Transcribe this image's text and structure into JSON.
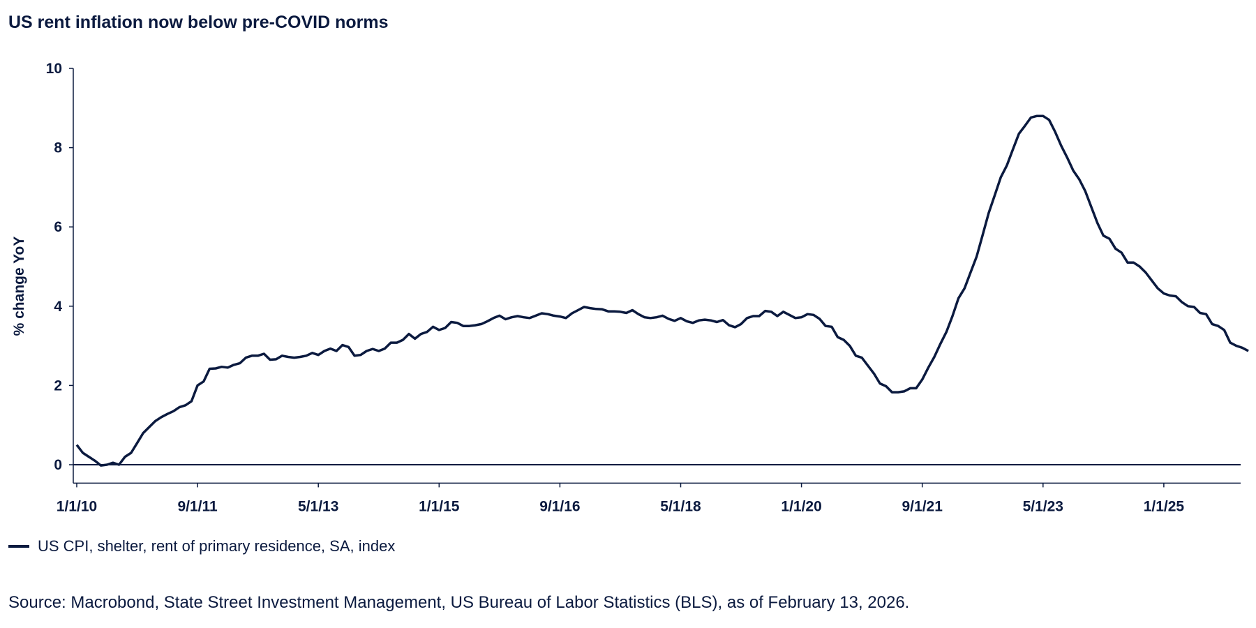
{
  "chart_data": {
    "type": "line",
    "title": "US rent inflation now below pre-COVID norms",
    "xlabel": "",
    "ylabel": "% change YoY",
    "ylim": [
      -0.5,
      10
    ],
    "yticks": [
      0,
      2,
      4,
      6,
      8,
      10
    ],
    "x_start": "2010-01",
    "x_frequency": "monthly",
    "xtick_labels": [
      "1/1/10",
      "9/1/11",
      "5/1/13",
      "1/1/15",
      "9/1/16",
      "5/1/18",
      "1/1/20",
      "9/1/21",
      "5/1/23",
      "1/1/25"
    ],
    "xtick_month_index": [
      0,
      20,
      40,
      60,
      80,
      100,
      120,
      140,
      160,
      180
    ],
    "grid": false,
    "legend_placement": "bottom-left",
    "series": [
      {
        "name": "US CPI, shelter, rent of primary residence, SA, index",
        "color": "#0b1a3f",
        "values": [
          0.5,
          0.3,
          0.2,
          0.1,
          -0.02,
          0.0,
          0.05,
          0.0,
          0.2,
          0.3,
          0.55,
          0.8,
          0.95,
          1.1,
          1.2,
          1.28,
          1.35,
          1.45,
          1.5,
          1.6,
          2.0,
          2.1,
          2.42,
          2.43,
          2.47,
          2.45,
          2.52,
          2.56,
          2.7,
          2.75,
          2.75,
          2.8,
          2.65,
          2.66,
          2.75,
          2.72,
          2.7,
          2.72,
          2.75,
          2.82,
          2.77,
          2.87,
          2.93,
          2.87,
          3.02,
          2.97,
          2.75,
          2.77,
          2.87,
          2.92,
          2.87,
          2.93,
          3.08,
          3.08,
          3.15,
          3.3,
          3.18,
          3.3,
          3.35,
          3.48,
          3.4,
          3.45,
          3.6,
          3.58,
          3.5,
          3.5,
          3.52,
          3.55,
          3.62,
          3.7,
          3.76,
          3.67,
          3.72,
          3.75,
          3.72,
          3.7,
          3.76,
          3.82,
          3.8,
          3.76,
          3.74,
          3.7,
          3.82,
          3.9,
          3.98,
          3.95,
          3.93,
          3.92,
          3.87,
          3.87,
          3.86,
          3.83,
          3.9,
          3.8,
          3.72,
          3.7,
          3.72,
          3.76,
          3.68,
          3.63,
          3.7,
          3.62,
          3.58,
          3.64,
          3.66,
          3.64,
          3.6,
          3.65,
          3.52,
          3.47,
          3.55,
          3.7,
          3.75,
          3.75,
          3.88,
          3.86,
          3.75,
          3.86,
          3.78,
          3.7,
          3.72,
          3.8,
          3.78,
          3.68,
          3.5,
          3.48,
          3.22,
          3.15,
          3.0,
          2.75,
          2.7,
          2.5,
          2.3,
          2.05,
          1.98,
          1.83,
          1.83,
          1.85,
          1.93,
          1.93,
          2.15,
          2.45,
          2.72,
          3.05,
          3.35,
          3.75,
          4.2,
          4.45,
          4.85,
          5.25,
          5.8,
          6.35,
          6.8,
          7.25,
          7.55,
          7.95,
          8.35,
          8.55,
          8.76,
          8.8,
          8.8,
          8.7,
          8.4,
          8.05,
          7.75,
          7.42,
          7.2,
          6.9,
          6.5,
          6.1,
          5.78,
          5.7,
          5.45,
          5.35,
          5.1,
          5.1,
          5.0,
          4.85,
          4.65,
          4.45,
          4.32,
          4.27,
          4.25,
          4.1,
          4.0,
          3.98,
          3.83,
          3.8,
          3.55,
          3.5,
          3.4,
          3.08,
          3.0,
          2.95,
          2.87
        ]
      }
    ]
  },
  "source": "Source: Macrobond, State Street Investment Management, US Bureau of Labor Statistics (BLS), as of February 13, 2026."
}
